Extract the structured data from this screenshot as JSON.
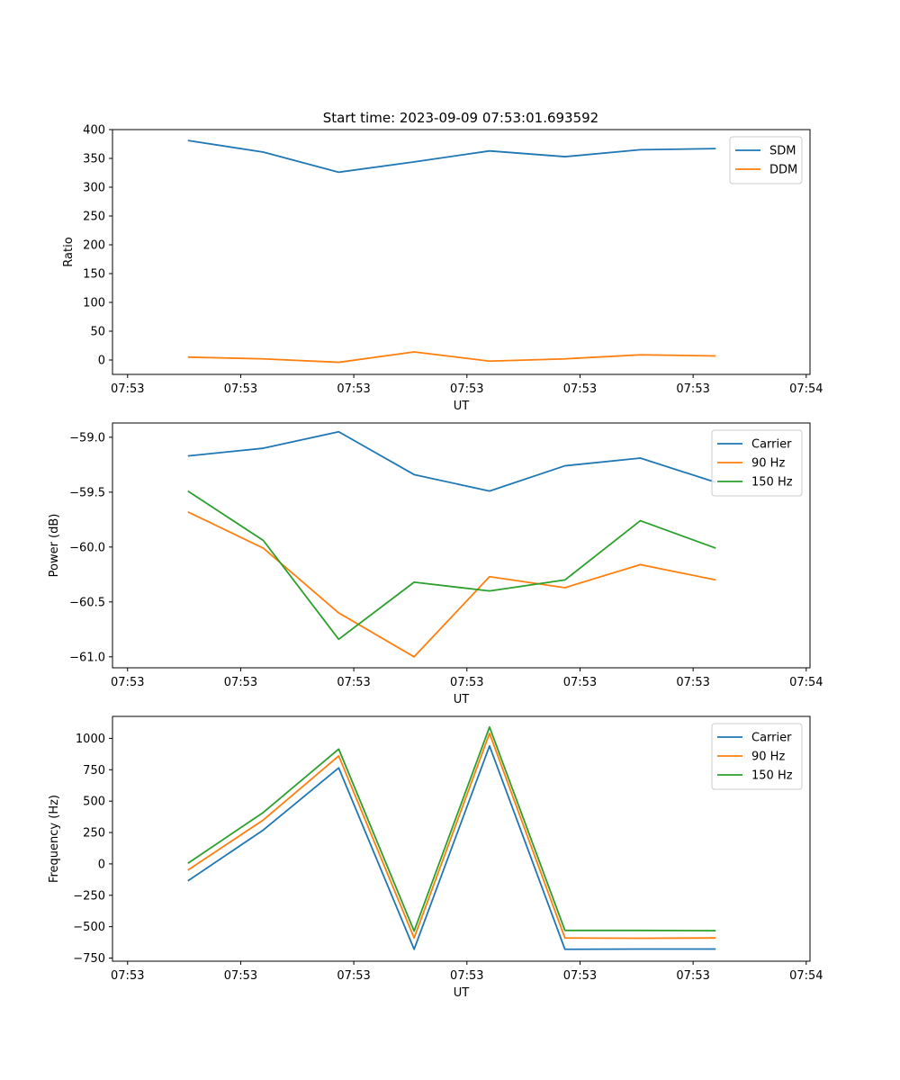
{
  "figure": {
    "title": "Start time: 2023-09-09 07:53:01.693592"
  },
  "chart_data": [
    {
      "type": "line",
      "title": "Start time: 2023-09-09 07:53:01.693592",
      "xlabel": "UT",
      "ylabel": "Ratio",
      "x": [
        1,
        2,
        3,
        4,
        5,
        6,
        7,
        8
      ],
      "xlim": [
        0,
        9.25
      ],
      "xticks": [
        0.2,
        1.7,
        3.2,
        4.7,
        6.2,
        7.7,
        9.2
      ],
      "xtick_labels": [
        "07:53",
        "07:53",
        "07:53",
        "07:53",
        "07:53",
        "07:53",
        "07:54"
      ],
      "ylim": [
        -25,
        400
      ],
      "yticks": [
        0,
        50,
        100,
        150,
        200,
        250,
        300,
        350,
        400
      ],
      "ytick_labels": [
        "0",
        "50",
        "100",
        "150",
        "200",
        "250",
        "300",
        "350",
        "400"
      ],
      "legend": "top-right",
      "series": [
        {
          "name": "SDM",
          "color": "#1f77b4",
          "values": [
            381,
            361,
            326,
            344,
            363,
            353,
            365,
            367
          ]
        },
        {
          "name": "DDM",
          "color": "#ff7f0e",
          "values": [
            5,
            2,
            -4,
            14,
            -2,
            2,
            9,
            7
          ]
        }
      ]
    },
    {
      "type": "line",
      "title": "",
      "xlabel": "UT",
      "ylabel": "Power (dB)",
      "x": [
        1,
        2,
        3,
        4,
        5,
        6,
        7,
        8
      ],
      "xlim": [
        0,
        9.25
      ],
      "xticks": [
        0.2,
        1.7,
        3.2,
        4.7,
        6.2,
        7.7,
        9.2
      ],
      "xtick_labels": [
        "07:53",
        "07:53",
        "07:53",
        "07:53",
        "07:53",
        "07:53",
        "07:54"
      ],
      "ylim": [
        -61.1,
        -58.87
      ],
      "yticks": [
        -61.0,
        -60.5,
        -60.0,
        -59.5,
        -59.0
      ],
      "ytick_labels": [
        "−61.0",
        "−60.5",
        "−60.0",
        "−59.5",
        "−59.0"
      ],
      "legend": "top-right",
      "series": [
        {
          "name": "Carrier",
          "color": "#1f77b4",
          "values": [
            -59.17,
            -59.1,
            -58.95,
            -59.34,
            -59.49,
            -59.26,
            -59.19,
            -59.41
          ]
        },
        {
          "name": "90 Hz",
          "color": "#ff7f0e",
          "values": [
            -59.68,
            -60.01,
            -60.6,
            -61.0,
            -60.27,
            -60.37,
            -60.16,
            -60.3
          ]
        },
        {
          "name": "150 Hz",
          "color": "#2ca02c",
          "values": [
            -59.49,
            -59.94,
            -60.84,
            -60.32,
            -60.4,
            -60.3,
            -59.76,
            -60.01
          ]
        }
      ]
    },
    {
      "type": "line",
      "title": "",
      "xlabel": "UT",
      "ylabel": "Frequency (Hz)",
      "x": [
        1,
        2,
        3,
        4,
        5,
        6,
        7,
        8
      ],
      "xlim": [
        0,
        9.25
      ],
      "xticks": [
        0.2,
        1.7,
        3.2,
        4.7,
        6.2,
        7.7,
        9.2
      ],
      "xtick_labels": [
        "07:53",
        "07:53",
        "07:53",
        "07:53",
        "07:53",
        "07:53",
        "07:54"
      ],
      "ylim": [
        -775,
        1175
      ],
      "yticks": [
        -750,
        -500,
        -250,
        0,
        250,
        500,
        750,
        1000
      ],
      "ytick_labels": [
        "−750",
        "−500",
        "−250",
        "0",
        "250",
        "500",
        "750",
        "1000"
      ],
      "legend": "top-right",
      "series": [
        {
          "name": "Carrier",
          "color": "#1f77b4",
          "values": [
            -135,
            270,
            765,
            -680,
            940,
            -680,
            -678,
            -678
          ]
        },
        {
          "name": "90 Hz",
          "color": "#ff7f0e",
          "values": [
            -50,
            350,
            860,
            -590,
            1040,
            -590,
            -592,
            -590
          ]
        },
        {
          "name": "150 Hz",
          "color": "#2ca02c",
          "values": [
            5,
            410,
            915,
            -535,
            1090,
            -530,
            -530,
            -532
          ]
        }
      ]
    }
  ]
}
